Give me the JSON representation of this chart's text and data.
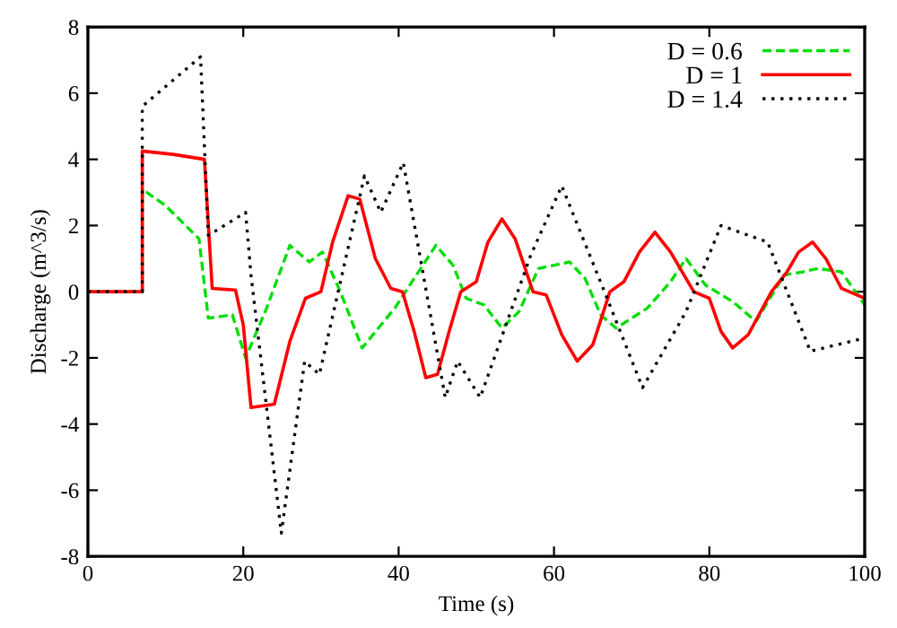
{
  "chart_data": {
    "type": "line",
    "xlabel": "Time (s)",
    "ylabel": "Discharge (m^3/s)",
    "xlim": [
      0,
      100
    ],
    "ylim": [
      -8,
      8
    ],
    "xticks": [
      0,
      20,
      40,
      60,
      80,
      100
    ],
    "yticks": [
      -8,
      -6,
      -4,
      -2,
      0,
      2,
      4,
      6,
      8
    ],
    "grid": false,
    "legend": "top right",
    "marker": "none",
    "series": [
      {
        "name": "D = 0.6",
        "color": "#00dd00",
        "line_style": "dashed",
        "x": [
          0,
          7,
          7,
          10,
          14.3,
          15.5,
          18.6,
          20.3,
          23,
          26,
          28.5,
          30.2,
          32.5,
          35.3,
          39.5,
          42,
          44.8,
          47,
          48.7,
          51,
          53.3,
          55.5,
          58,
          62,
          64,
          66,
          68,
          72,
          75,
          77,
          79.5,
          83,
          86,
          89.6,
          92,
          94,
          97,
          100
        ],
        "values": [
          0,
          0,
          3.1,
          2.6,
          1.6,
          -0.8,
          -0.7,
          -2.0,
          -0.5,
          1.4,
          0.9,
          1.2,
          0,
          -1.7,
          -0.5,
          0.4,
          1.4,
          0.8,
          -0.2,
          -0.4,
          -1.1,
          -0.6,
          0.7,
          0.9,
          0.4,
          -0.7,
          -1.1,
          -0.5,
          0.3,
          1.0,
          0.2,
          -0.3,
          -0.9,
          0.5,
          0.6,
          0.7,
          0.6,
          -0.4
        ]
      },
      {
        "name": "D = 1",
        "color": "#ff0000",
        "line_style": "solid",
        "x": [
          0,
          7,
          7,
          11,
          15,
          16,
          19,
          20,
          21,
          24,
          26,
          28,
          30,
          31.5,
          33.5,
          35,
          37,
          39,
          40.5,
          42,
          43.5,
          45,
          46.5,
          48,
          50,
          51.5,
          53.3,
          55,
          57.3,
          59,
          61,
          63,
          65,
          67.2,
          69,
          71,
          73,
          75,
          78,
          80,
          81.5,
          83,
          85,
          88,
          90,
          91.5,
          93.3,
          95,
          97,
          100
        ],
        "values": [
          0,
          0,
          4.25,
          4.15,
          4.0,
          0.1,
          0.05,
          -1.0,
          -3.5,
          -3.4,
          -1.5,
          -0.2,
          0,
          1.5,
          2.9,
          2.8,
          1.0,
          0.1,
          0,
          -1.2,
          -2.6,
          -2.5,
          -1.2,
          0,
          0.3,
          1.5,
          2.2,
          1.6,
          0,
          -0.1,
          -1.3,
          -2.1,
          -1.6,
          0,
          0.3,
          1.2,
          1.8,
          1.2,
          0,
          -0.2,
          -1.2,
          -1.7,
          -1.3,
          0,
          0.6,
          1.2,
          1.5,
          1.0,
          0.1,
          -0.2
        ]
      },
      {
        "name": "D = 1.4",
        "color": "#000000",
        "line_style": "dotted",
        "x": [
          0,
          7,
          7,
          14.5,
          15.5,
          20.3,
          21,
          24.9,
          27.9,
          29.8,
          35.6,
          37.7,
          40.6,
          46,
          47.6,
          50.5,
          57,
          61,
          66.5,
          71.4,
          77,
          81.5,
          87.5,
          93,
          96.5,
          100
        ],
        "values": [
          0,
          0,
          5.6,
          7.1,
          1.7,
          2.4,
          0.5,
          -7.3,
          -2.1,
          -2.5,
          3.5,
          2.4,
          3.9,
          -3.2,
          -2.1,
          -3.2,
          1.1,
          3.2,
          0,
          -2.9,
          -0.6,
          2.0,
          1.5,
          -1.8,
          -1.6,
          -1.4
        ]
      }
    ]
  }
}
